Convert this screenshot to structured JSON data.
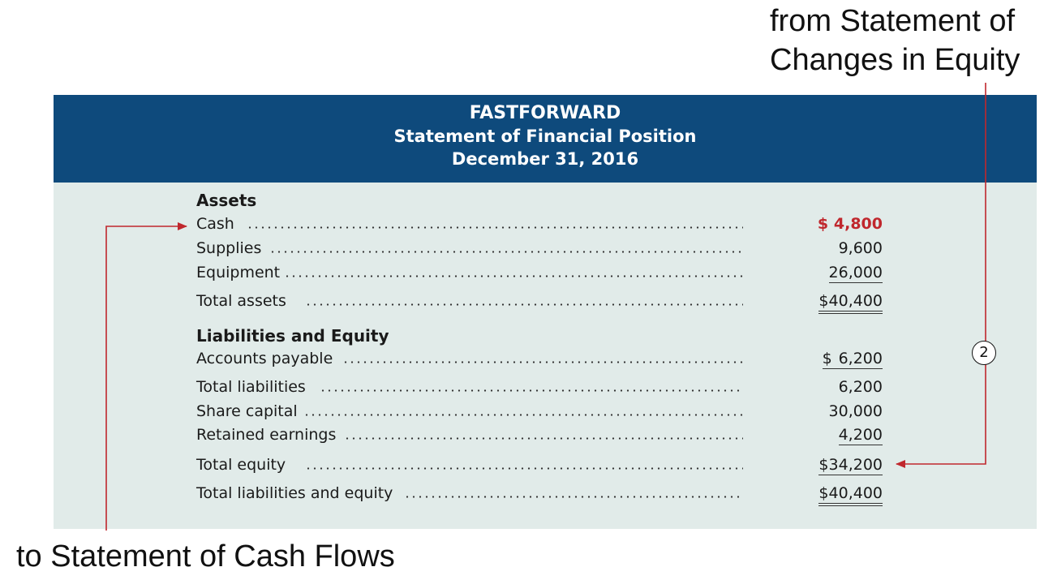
{
  "annotations": {
    "top_line1": "from Statement of",
    "top_line2": "Changes in Equity",
    "bottom": "to Statement of Cash Flows",
    "step_marker": "2"
  },
  "header": {
    "company": "FASTFORWARD",
    "title": "Statement of Financial Position",
    "date": "December 31, 2016"
  },
  "assets": {
    "heading": "Assets",
    "items": [
      {
        "label": "Cash",
        "currency": "$",
        "amount": "4,800"
      },
      {
        "label": "Supplies",
        "currency": "",
        "amount": "9,600"
      },
      {
        "label": "Equipment",
        "currency": "",
        "amount": "26,000"
      }
    ],
    "total": {
      "label": "Total assets",
      "currency": "$",
      "amount": "40,400"
    }
  },
  "liabilities_equity": {
    "heading": "Liabilities and Equity",
    "accounts_payable": {
      "label": "Accounts payable",
      "currency": "$",
      "amount": "6,200"
    },
    "total_liabilities": {
      "label": "Total liabilities",
      "currency": "",
      "amount": "6,200"
    },
    "share_capital": {
      "label": "Share capital",
      "currency": "",
      "amount": "30,000"
    },
    "retained_earnings": {
      "label": "Retained earnings",
      "currency": "",
      "amount": "4,200"
    },
    "total_equity": {
      "label": "Total equity",
      "currency": "$",
      "amount": "34,200"
    },
    "total_liabilities_and_equity": {
      "label": "Total liabilities and equity",
      "currency": "$",
      "amount": "40,400"
    }
  },
  "colors": {
    "header_bg": "#0e4a7c",
    "body_bg": "#e1ebe9",
    "highlight": "#c0272d"
  }
}
